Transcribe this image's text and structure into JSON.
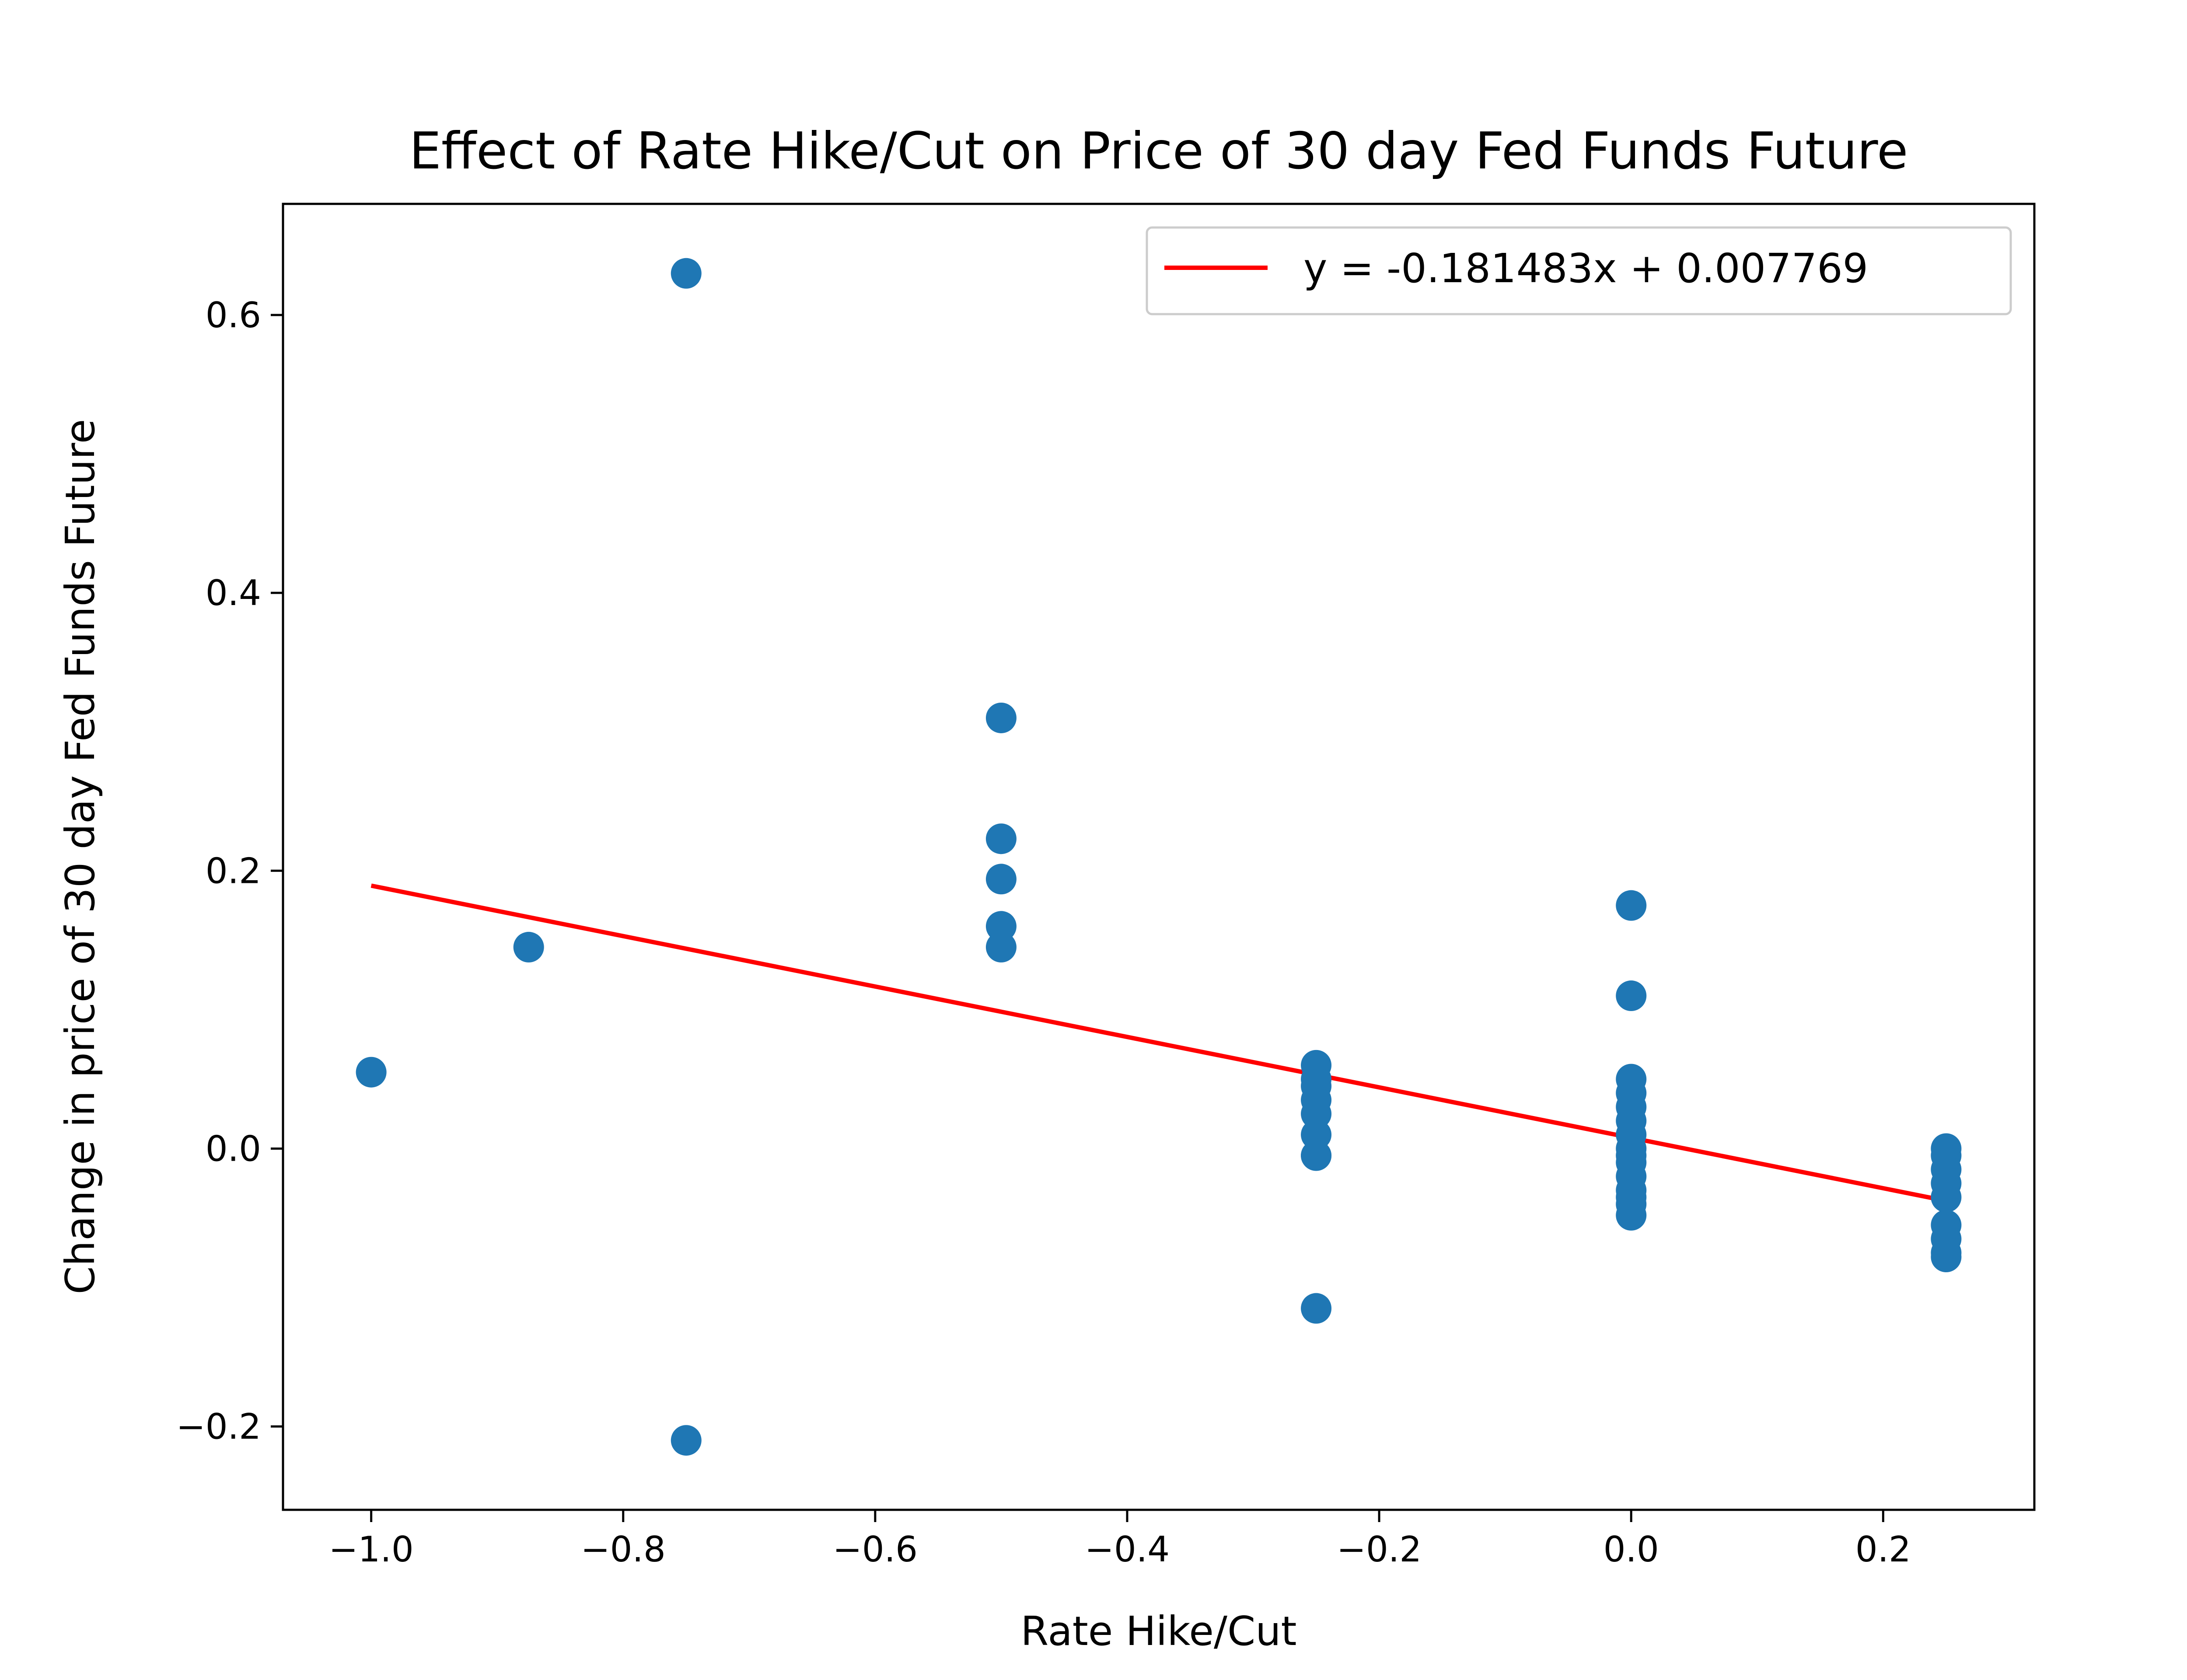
{
  "chart_data": {
    "type": "scatter",
    "title": "Effect of Rate Hike/Cut on Price of 30 day Fed Funds Future",
    "xlabel": "Rate Hike/Cut",
    "ylabel": "Change in price of 30 day Fed Funds Future",
    "xlim": [
      -1.07,
      0.32
    ],
    "ylim": [
      -0.26,
      0.68
    ],
    "x_ticks": [
      -1.0,
      -0.8,
      -0.6,
      -0.4,
      -0.2,
      0.0,
      0.2
    ],
    "x_tick_labels": [
      "−1.0",
      "−0.8",
      "−0.6",
      "−0.4",
      "−0.2",
      "0.0",
      "0.2"
    ],
    "y_ticks": [
      -0.2,
      0.0,
      0.2,
      0.4,
      0.6
    ],
    "y_tick_labels": [
      "−0.2",
      "0.0",
      "0.2",
      "0.4",
      "0.6"
    ],
    "grid": false,
    "legend_position": "top-right",
    "point_color": "#1f77b4",
    "line_color": "#ff0000",
    "series": [
      {
        "kind": "points",
        "x": [
          -1.0,
          -0.875,
          -0.75,
          -0.75,
          -0.5,
          -0.5,
          -0.5,
          -0.5,
          -0.5,
          -0.25,
          -0.25,
          -0.25,
          -0.25,
          -0.25,
          -0.25,
          -0.25,
          -0.25,
          -0.25,
          0.0,
          0.0,
          0.0,
          0.0,
          0.0,
          0.0,
          0.0,
          0.0,
          0.0,
          0.0,
          0.0,
          0.0,
          0.0,
          0.0,
          0.0,
          0.25,
          0.25,
          0.25,
          0.25,
          0.25,
          0.25,
          0.25,
          0.25,
          0.25
        ],
        "y": [
          0.055,
          0.145,
          0.63,
          -0.21,
          0.31,
          0.223,
          0.194,
          0.16,
          0.145,
          0.06,
          0.05,
          0.045,
          0.035,
          0.025,
          0.01,
          -0.005,
          -0.005,
          -0.115,
          0.175,
          0.11,
          0.05,
          0.04,
          0.03,
          0.02,
          0.01,
          0.0,
          -0.005,
          -0.01,
          -0.02,
          -0.03,
          -0.035,
          -0.04,
          -0.048,
          0.0,
          -0.005,
          -0.015,
          -0.025,
          -0.035,
          -0.055,
          -0.065,
          -0.075,
          -0.078
        ]
      },
      {
        "kind": "line",
        "name": "y = -0.181483x + 0.007769",
        "slope": -0.181483,
        "intercept": 0.007769,
        "x_range": [
          -1.0,
          0.25
        ]
      }
    ]
  }
}
